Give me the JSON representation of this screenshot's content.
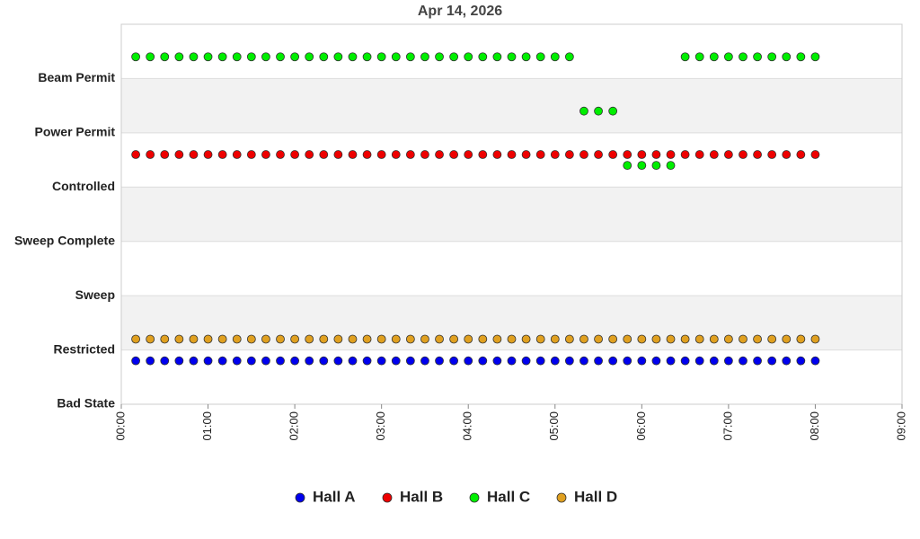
{
  "chart_data": {
    "type": "scatter",
    "title": "Apr 14, 2026",
    "x": [
      10,
      20,
      30,
      40,
      50,
      60,
      70,
      80,
      90,
      100,
      110,
      120,
      130,
      140,
      150,
      160,
      170,
      180,
      190,
      200,
      210,
      220,
      230,
      240,
      250,
      260,
      270,
      280,
      290,
      300,
      310,
      320,
      330,
      340,
      350,
      360,
      370,
      380,
      390,
      400,
      410,
      420,
      430,
      440,
      450,
      460,
      470,
      480
    ],
    "xlim": [
      0,
      540
    ],
    "xticks": [
      {
        "value": 0,
        "label": "00:00"
      },
      {
        "value": 60,
        "label": "01:00"
      },
      {
        "value": 120,
        "label": "02:00"
      },
      {
        "value": 180,
        "label": "03:00"
      },
      {
        "value": 240,
        "label": "04:00"
      },
      {
        "value": 300,
        "label": "05:00"
      },
      {
        "value": 360,
        "label": "06:00"
      },
      {
        "value": 420,
        "label": "07:00"
      },
      {
        "value": 480,
        "label": "08:00"
      },
      {
        "value": 540,
        "label": "09:00"
      }
    ],
    "ylim": [
      0,
      7
    ],
    "yticks": [
      {
        "value": 0,
        "label": "Bad State"
      },
      {
        "value": 1,
        "label": "Restricted"
      },
      {
        "value": 2,
        "label": "Sweep"
      },
      {
        "value": 3,
        "label": "Sweep Complete"
      },
      {
        "value": 4,
        "label": "Controlled"
      },
      {
        "value": 5,
        "label": "Power Permit"
      },
      {
        "value": 6,
        "label": "Beam Permit"
      }
    ],
    "bands": true,
    "series": [
      {
        "name": "Hall A",
        "color": "#0000ee",
        "values": [
          0.8,
          0.8,
          0.8,
          0.8,
          0.8,
          0.8,
          0.8,
          0.8,
          0.8,
          0.8,
          0.8,
          0.8,
          0.8,
          0.8,
          0.8,
          0.8,
          0.8,
          0.8,
          0.8,
          0.8,
          0.8,
          0.8,
          0.8,
          0.8,
          0.8,
          0.8,
          0.8,
          0.8,
          0.8,
          0.8,
          0.8,
          0.8,
          0.8,
          0.8,
          0.8,
          0.8,
          0.8,
          0.8,
          0.8,
          0.8,
          0.8,
          0.8,
          0.8,
          0.8,
          0.8,
          0.8,
          0.8,
          0.8
        ]
      },
      {
        "name": "Hall B",
        "color": "#ee0000",
        "values": [
          4.6,
          4.6,
          4.6,
          4.6,
          4.6,
          4.6,
          4.6,
          4.6,
          4.6,
          4.6,
          4.6,
          4.6,
          4.6,
          4.6,
          4.6,
          4.6,
          4.6,
          4.6,
          4.6,
          4.6,
          4.6,
          4.6,
          4.6,
          4.6,
          4.6,
          4.6,
          4.6,
          4.6,
          4.6,
          4.6,
          4.6,
          4.6,
          4.6,
          4.6,
          4.6,
          4.6,
          4.6,
          4.6,
          4.6,
          4.6,
          4.6,
          4.6,
          4.6,
          4.6,
          4.6,
          4.6,
          4.6,
          4.6
        ]
      },
      {
        "name": "Hall C",
        "color": "#00ee00",
        "values": [
          6.4,
          6.4,
          6.4,
          6.4,
          6.4,
          6.4,
          6.4,
          6.4,
          6.4,
          6.4,
          6.4,
          6.4,
          6.4,
          6.4,
          6.4,
          6.4,
          6.4,
          6.4,
          6.4,
          6.4,
          6.4,
          6.4,
          6.4,
          6.4,
          6.4,
          6.4,
          6.4,
          6.4,
          6.4,
          6.4,
          6.4,
          5.4,
          5.4,
          5.4,
          4.4,
          4.4,
          4.4,
          4.4,
          6.4,
          6.4,
          6.4,
          6.4,
          6.4,
          6.4,
          6.4,
          6.4,
          6.4,
          6.4
        ]
      },
      {
        "name": "Hall D",
        "color": "#e0a020",
        "values": [
          1.2,
          1.2,
          1.2,
          1.2,
          1.2,
          1.2,
          1.2,
          1.2,
          1.2,
          1.2,
          1.2,
          1.2,
          1.2,
          1.2,
          1.2,
          1.2,
          1.2,
          1.2,
          1.2,
          1.2,
          1.2,
          1.2,
          1.2,
          1.2,
          1.2,
          1.2,
          1.2,
          1.2,
          1.2,
          1.2,
          1.2,
          1.2,
          1.2,
          1.2,
          1.2,
          1.2,
          1.2,
          1.2,
          1.2,
          1.2,
          1.2,
          1.2,
          1.2,
          1.2,
          1.2,
          1.2,
          1.2,
          1.2
        ]
      }
    ]
  }
}
